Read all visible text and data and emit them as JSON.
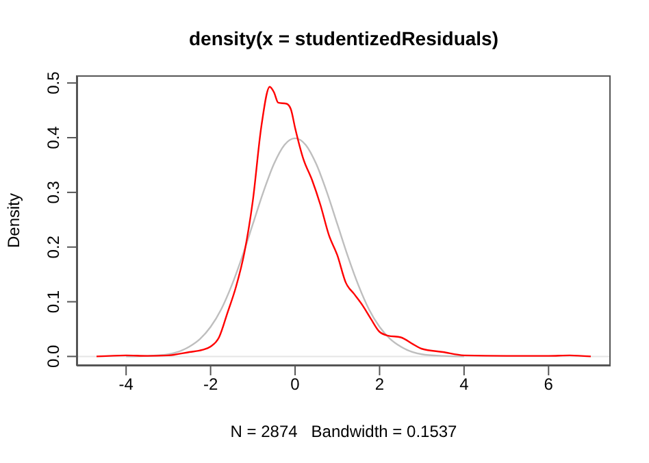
{
  "chart_data": {
    "type": "line",
    "title": "density(x = studentizedResiduals)",
    "xlabel": "N = 2874   Bandwidth = 0.1537",
    "ylabel": "Density",
    "series": [
      {
        "color": "#bebebe",
        "x": [
          -4,
          -3.5,
          -3,
          -2.5,
          -2.25,
          -2,
          -1.75,
          -1.5,
          -1.25,
          -1,
          -0.75,
          -0.5,
          -0.25,
          0,
          0.25,
          0.5,
          0.75,
          1,
          1.25,
          1.5,
          1.75,
          2,
          2.25,
          2.5,
          3,
          3.5,
          4
        ],
        "values": [
          0,
          0.001,
          0.004,
          0.018,
          0.032,
          0.054,
          0.086,
          0.13,
          0.183,
          0.242,
          0.301,
          0.352,
          0.387,
          0.399,
          0.387,
          0.352,
          0.301,
          0.242,
          0.183,
          0.13,
          0.086,
          0.054,
          0.032,
          0.018,
          0.004,
          0.001,
          0
        ]
      },
      {
        "color": "#ff0000",
        "x": [
          -4.7,
          -4,
          -3.5,
          -3,
          -2.5,
          -2.2,
          -2,
          -1.8,
          -1.6,
          -1.4,
          -1.2,
          -1,
          -0.8,
          -0.6,
          -0.5,
          -0.4,
          -0.2,
          -0.1,
          0,
          0.2,
          0.4,
          0.6,
          0.8,
          1,
          1.2,
          1.4,
          1.6,
          1.8,
          2,
          2.2,
          2.5,
          2.8,
          3,
          3.5,
          4,
          5,
          6,
          6.5,
          7
        ],
        "values": [
          0,
          0.002,
          0.001,
          0.002,
          0.008,
          0.012,
          0.018,
          0.035,
          0.08,
          0.127,
          0.19,
          0.285,
          0.42,
          0.493,
          0.483,
          0.464,
          0.462,
          0.452,
          0.418,
          0.36,
          0.323,
          0.277,
          0.222,
          0.185,
          0.135,
          0.114,
          0.093,
          0.068,
          0.045,
          0.038,
          0.035,
          0.022,
          0.014,
          0.008,
          0.002,
          0.001,
          0.001,
          0.002,
          0
        ]
      }
    ],
    "xlim": [
      -5.17,
      7.47
    ],
    "xticks": [
      -4,
      -2,
      0,
      2,
      4,
      6
    ],
    "ylim": [
      -0.017,
      0.514
    ],
    "yticks": [
      {
        "value": 0,
        "label": "0.0"
      },
      {
        "value": 0.1,
        "label": "0.1"
      },
      {
        "value": 0.2,
        "label": "0.2"
      },
      {
        "value": 0.3,
        "label": "0.3"
      },
      {
        "value": 0.4,
        "label": "0.4"
      },
      {
        "value": 0.5,
        "label": "0.5"
      }
    ],
    "ref_lines": [
      {
        "axis": "y",
        "value": 0,
        "color": "#e5e5e5"
      }
    ],
    "marker": "none",
    "line_style": "solid"
  }
}
